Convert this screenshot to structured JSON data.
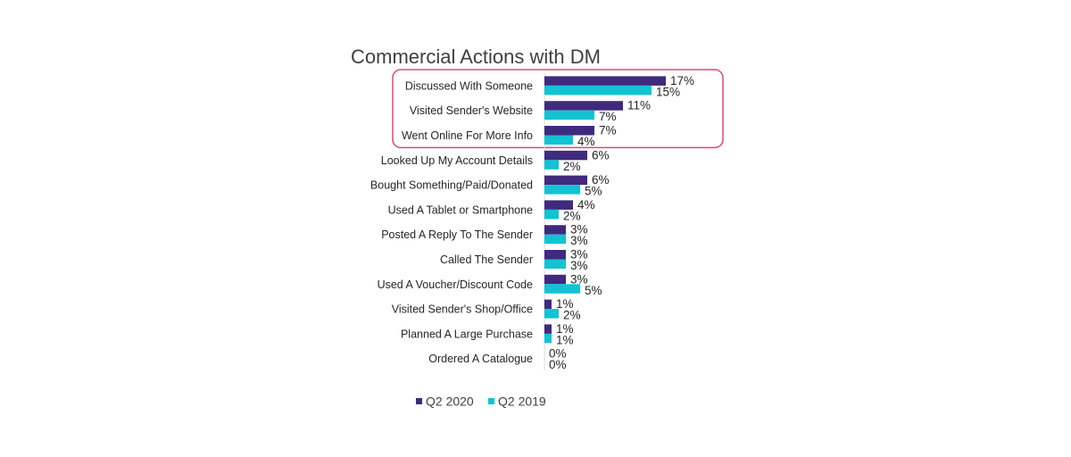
{
  "chart_data": {
    "type": "bar",
    "orientation": "horizontal",
    "title": "Commercial Actions with DM",
    "categories": [
      "Discussed With Someone",
      "Visited Sender's Website",
      "Went Online For More Info",
      "Looked Up My Account Details",
      "Bought Something/Paid/Donated",
      "Used A Tablet or Smartphone",
      "Posted A Reply To The Sender",
      "Called The Sender",
      "Used A Voucher/Discount Code",
      "Visited Sender's Shop/Office",
      "Planned A Large Purchase",
      "Ordered A Catalogue"
    ],
    "series": [
      {
        "name": "Q2 2020",
        "color": "#3f2a7e",
        "values": [
          17,
          11,
          7,
          6,
          6,
          4,
          3,
          3,
          3,
          1,
          1,
          0
        ],
        "labels": [
          "17%",
          "11%",
          "7%",
          "6%",
          "6%",
          "4%",
          "3%",
          "3%",
          "3%",
          "1%",
          "1%",
          "0%"
        ]
      },
      {
        "name": "Q2 2019",
        "color": "#12c3d3",
        "values": [
          15,
          7,
          4,
          2,
          5,
          2,
          3,
          3,
          5,
          2,
          1,
          0
        ],
        "labels": [
          "15%",
          "7%",
          "4%",
          "2%",
          "5%",
          "2%",
          "3%",
          "3%",
          "5%",
          "2%",
          "1%",
          "0%"
        ]
      }
    ],
    "highlight": {
      "categories": [
        "Discussed With Someone",
        "Visited Sender's Website",
        "Went Online For More Info"
      ],
      "color": "#e0457a"
    },
    "legend_position": "bottom",
    "grid": false
  }
}
